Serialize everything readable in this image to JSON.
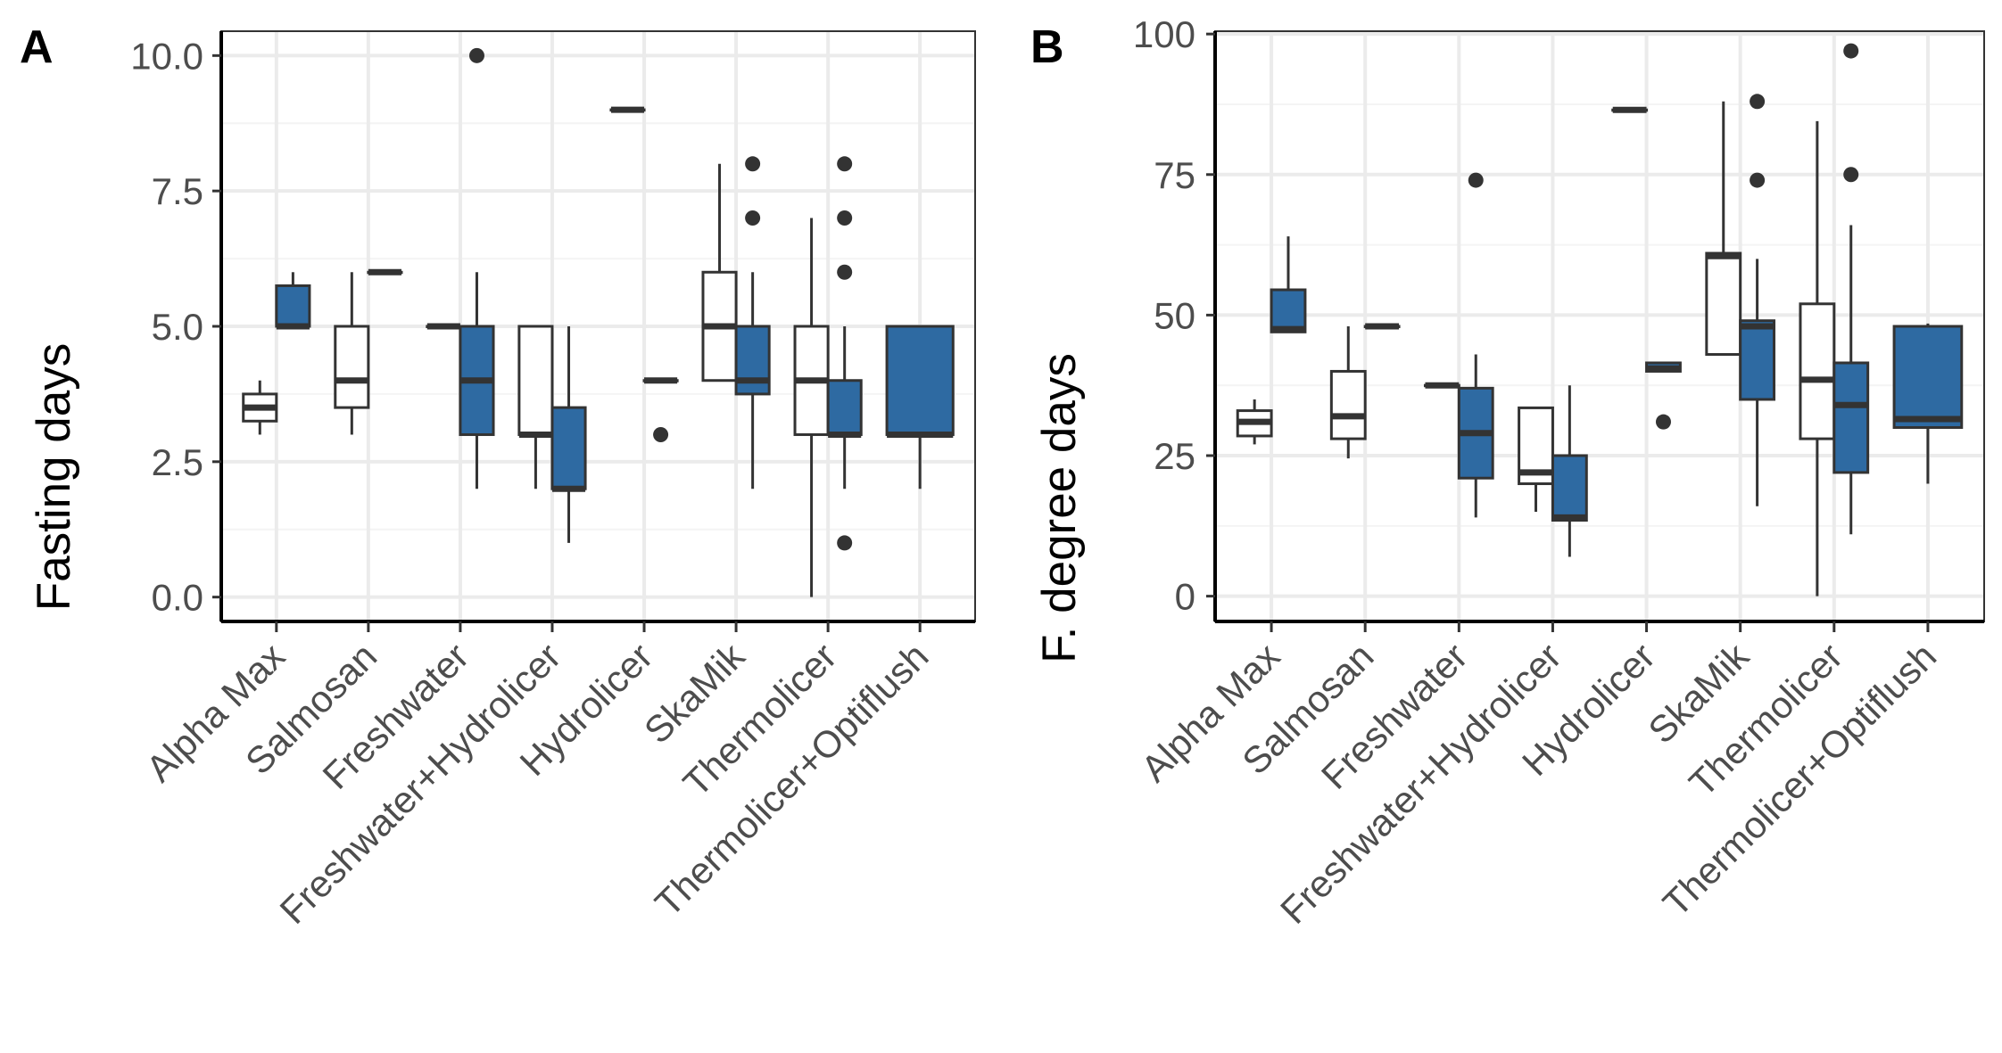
{
  "colors": {
    "group_a_fill": "#ffffff",
    "group_b_fill": "#2e6aa2",
    "stroke": "#333333",
    "grid_major": "#ebebeb",
    "grid_minor": "#f4f4f4",
    "tick_text": "#4d4d4d",
    "title_text": "#000000"
  },
  "chart_data": [
    {
      "panel": "A",
      "type": "box",
      "ylabel": "Fasting days",
      "xlabel": "",
      "ylim": [
        -0.45,
        10.45
      ],
      "y_ticks": [
        "0.0",
        "2.5",
        "5.0",
        "7.5",
        "10.0"
      ],
      "y_tick_values": [
        0,
        2.5,
        5,
        7.5,
        10
      ],
      "categories": [
        "Alpha Max",
        "Salmosan",
        "Freshwater",
        "Freshwater+Hydrolicer",
        "Hydrolicer",
        "SkaMik",
        "Thermolicer",
        "Thermolicer+Optiflush"
      ],
      "series": [
        {
          "name": "group 1 (white)",
          "fill": "#ffffff",
          "boxes": [
            {
              "category": "Alpha Max",
              "lower_whisker": 3,
              "q1": 3.25,
              "median": 3.5,
              "q3": 3.75,
              "upper_whisker": 4,
              "outliers": []
            },
            {
              "category": "Salmosan",
              "lower_whisker": 3,
              "q1": 3.5,
              "median": 4,
              "q3": 5,
              "upper_whisker": 6,
              "outliers": []
            },
            {
              "category": "Freshwater",
              "lower_whisker": 5,
              "q1": 5,
              "median": 5,
              "q3": 5,
              "upper_whisker": 5,
              "outliers": []
            },
            {
              "category": "Freshwater+Hydrolicer",
              "lower_whisker": 2,
              "q1": 3,
              "median": 3,
              "q3": 5,
              "upper_whisker": 5,
              "outliers": []
            },
            {
              "category": "Hydrolicer",
              "lower_whisker": 9,
              "q1": 9,
              "median": 9,
              "q3": 9,
              "upper_whisker": 9,
              "outliers": []
            },
            {
              "category": "SkaMik",
              "lower_whisker": 4,
              "q1": 4,
              "median": 5,
              "q3": 6,
              "upper_whisker": 8,
              "outliers": []
            },
            {
              "category": "Thermolicer",
              "lower_whisker": 0,
              "q1": 3,
              "median": 4,
              "q3": 5,
              "upper_whisker": 7,
              "outliers": []
            }
          ]
        },
        {
          "name": "group 2 (blue)",
          "fill": "#2e6aa2",
          "boxes": [
            {
              "category": "Alpha Max",
              "lower_whisker": 5,
              "q1": 5,
              "median": 5,
              "q3": 5.75,
              "upper_whisker": 6,
              "outliers": []
            },
            {
              "category": "Salmosan",
              "lower_whisker": 6,
              "q1": 6,
              "median": 6,
              "q3": 6,
              "upper_whisker": 6,
              "outliers": []
            },
            {
              "category": "Freshwater",
              "lower_whisker": 2,
              "q1": 3,
              "median": 4,
              "q3": 5,
              "upper_whisker": 6,
              "outliers": [
                10
              ]
            },
            {
              "category": "Freshwater+Hydrolicer",
              "lower_whisker": 1,
              "q1": 2,
              "median": 2,
              "q3": 3.5,
              "upper_whisker": 5,
              "outliers": []
            },
            {
              "category": "Hydrolicer",
              "lower_whisker": 4,
              "q1": 4,
              "median": 4,
              "q3": 4,
              "upper_whisker": 4,
              "outliers": [
                3
              ]
            },
            {
              "category": "SkaMik",
              "lower_whisker": 2,
              "q1": 3.75,
              "median": 4,
              "q3": 5,
              "upper_whisker": 6,
              "outliers": [
                7,
                8
              ]
            },
            {
              "category": "Thermolicer",
              "lower_whisker": 2,
              "q1": 3,
              "median": 3,
              "q3": 4,
              "upper_whisker": 5,
              "outliers": [
                1,
                6,
                7,
                8
              ]
            },
            {
              "category": "Thermolicer+Optiflush",
              "lower_whisker": 2,
              "q1": 3,
              "median": 3,
              "q3": 5,
              "upper_whisker": 5,
              "outliers": [],
              "centered": true
            }
          ]
        }
      ]
    },
    {
      "panel": "B",
      "type": "box",
      "ylabel": "F. degree days",
      "xlabel": "",
      "ylim": [
        -4.5,
        100.5
      ],
      "y_ticks": [
        "0",
        "25",
        "50",
        "75",
        "100"
      ],
      "y_tick_values": [
        0,
        25,
        50,
        75,
        100
      ],
      "categories": [
        "Alpha Max",
        "Salmosan",
        "Freshwater",
        "Freshwater+Hydrolicer",
        "Hydrolicer",
        "SkaMik",
        "Thermolicer",
        "Thermolicer+Optiflush"
      ],
      "series": [
        {
          "name": "group 1 (white)",
          "fill": "#ffffff",
          "boxes": [
            {
              "category": "Alpha Max",
              "lower_whisker": 27,
              "q1": 28.5,
              "median": 31,
              "q3": 33,
              "upper_whisker": 35,
              "outliers": []
            },
            {
              "category": "Salmosan",
              "lower_whisker": 24.5,
              "q1": 28,
              "median": 32,
              "q3": 40,
              "upper_whisker": 48,
              "outliers": []
            },
            {
              "category": "Freshwater",
              "lower_whisker": 37.5,
              "q1": 37.5,
              "median": 37.5,
              "q3": 37.5,
              "upper_whisker": 37.5,
              "outliers": []
            },
            {
              "category": "Freshwater+Hydrolicer",
              "lower_whisker": 15,
              "q1": 20,
              "median": 22,
              "q3": 33.5,
              "upper_whisker": 33.5,
              "outliers": []
            },
            {
              "category": "Hydrolicer",
              "lower_whisker": 86.5,
              "q1": 86.5,
              "median": 86.5,
              "q3": 86.5,
              "upper_whisker": 86.5,
              "outliers": []
            },
            {
              "category": "SkaMik",
              "lower_whisker": 43,
              "q1": 43,
              "median": 60.5,
              "q3": 61,
              "upper_whisker": 88,
              "outliers": []
            },
            {
              "category": "Thermolicer",
              "lower_whisker": 0,
              "q1": 28,
              "median": 38.5,
              "q3": 52,
              "upper_whisker": 84.5,
              "outliers": []
            }
          ]
        },
        {
          "name": "group 2 (blue)",
          "fill": "#2e6aa2",
          "boxes": [
            {
              "category": "Alpha Max",
              "lower_whisker": 47,
              "q1": 47,
              "median": 47.5,
              "q3": 54.5,
              "upper_whisker": 64,
              "outliers": []
            },
            {
              "category": "Salmosan",
              "lower_whisker": 48,
              "q1": 48,
              "median": 48,
              "q3": 48,
              "upper_whisker": 48,
              "outliers": []
            },
            {
              "category": "Freshwater",
              "lower_whisker": 14,
              "q1": 21,
              "median": 29,
              "q3": 37,
              "upper_whisker": 43,
              "outliers": [
                74
              ]
            },
            {
              "category": "Freshwater+Hydrolicer",
              "lower_whisker": 7,
              "q1": 13.5,
              "median": 14,
              "q3": 25,
              "upper_whisker": 37.5,
              "outliers": []
            },
            {
              "category": "Hydrolicer",
              "lower_whisker": 40,
              "q1": 40,
              "median": 40.5,
              "q3": 41.5,
              "upper_whisker": 41.5,
              "outliers": [
                31
              ]
            },
            {
              "category": "SkaMik",
              "lower_whisker": 16,
              "q1": 35,
              "median": 48,
              "q3": 49,
              "upper_whisker": 60,
              "outliers": [
                74,
                88
              ]
            },
            {
              "category": "Thermolicer",
              "lower_whisker": 11,
              "q1": 22,
              "median": 34,
              "q3": 41.5,
              "upper_whisker": 66,
              "outliers": [
                75,
                97
              ]
            },
            {
              "category": "Thermolicer+Optiflush",
              "lower_whisker": 20,
              "q1": 30,
              "median": 31.5,
              "q3": 48,
              "upper_whisker": 48.5,
              "outliers": [],
              "centered": true
            }
          ]
        }
      ]
    }
  ]
}
